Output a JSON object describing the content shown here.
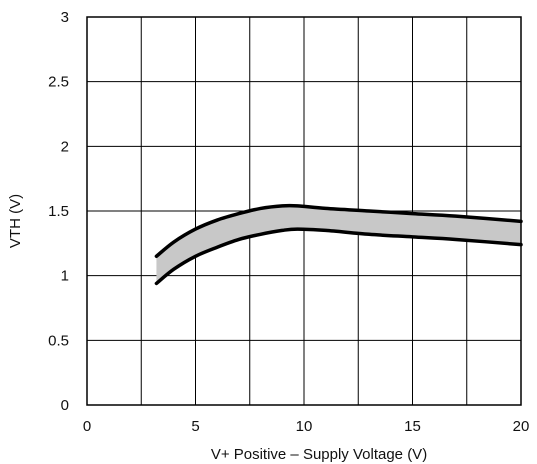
{
  "chart_data": {
    "type": "area",
    "xlabel": "V+ Positive – Supply Voltage (V)",
    "ylabel": "VTH (V)",
    "xlim": [
      0,
      20
    ],
    "ylim": [
      0,
      3
    ],
    "x_ticks": [
      0,
      5,
      10,
      15,
      20
    ],
    "y_ticks": [
      0,
      0.5,
      1,
      1.5,
      2,
      2.5,
      3
    ],
    "x_tick_labels": [
      "0",
      "5",
      "10",
      "15",
      "20"
    ],
    "y_tick_labels": [
      "0",
      "0.5",
      "1",
      "1.5",
      "2",
      "2.5",
      "3"
    ],
    "grid": true,
    "series": [
      {
        "role": "upper",
        "x": [
          3.2,
          4,
          5,
          6,
          7,
          8,
          9,
          9.7,
          11,
          13,
          15,
          17,
          20
        ],
        "values": [
          1.15,
          1.26,
          1.36,
          1.43,
          1.48,
          1.52,
          1.54,
          1.54,
          1.52,
          1.5,
          1.48,
          1.46,
          1.42
        ]
      },
      {
        "role": "lower",
        "x": [
          3.2,
          4,
          5,
          6,
          7,
          8,
          9,
          9.7,
          11,
          13,
          15,
          17,
          20
        ],
        "values": [
          0.94,
          1.05,
          1.15,
          1.22,
          1.28,
          1.32,
          1.35,
          1.36,
          1.35,
          1.32,
          1.3,
          1.28,
          1.24
        ]
      }
    ],
    "colors": {
      "band_fill": "#c8c8c8",
      "line": "#000000",
      "grid": "#000000"
    }
  }
}
